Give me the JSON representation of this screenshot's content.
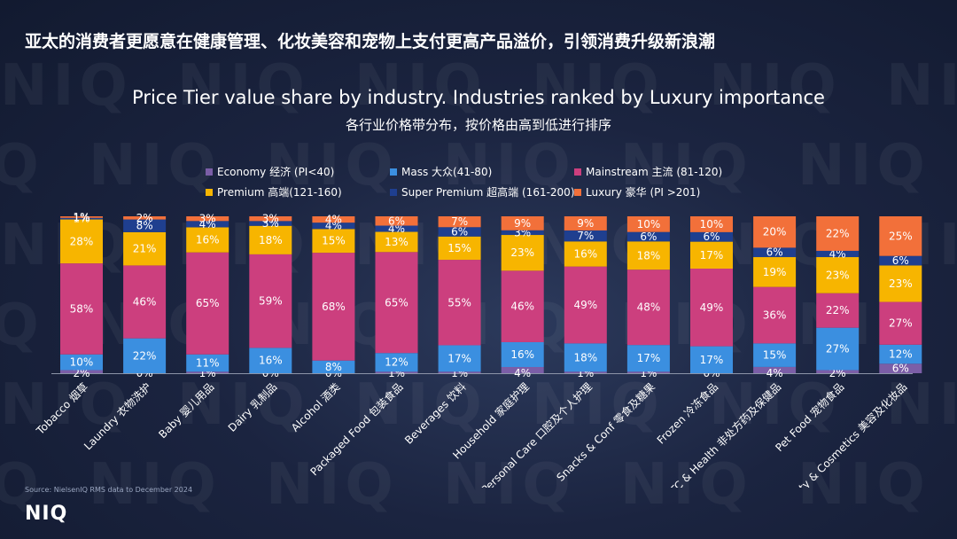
{
  "headline": "亚太的消费者更愿意在健康管理、化妆美容和宠物上支付更高产品溢价，引领消费升级新浪潮",
  "watermark": "NIQ",
  "chart_data": {
    "type": "bar",
    "stacked": true,
    "title": "Price Tier value share by industry. Industries ranked by Luxury importance",
    "subtitle": "各行业价格带分布，按价格由高到低进行排序",
    "legend_position": "top",
    "categories": [
      "Tobacco 烟草",
      "Laundry 衣物洗护",
      "Baby 婴儿用品",
      "Dairy 乳制品",
      "Alcohol 酒类",
      "Packaged Food 包装食品",
      "Beverages 饮料",
      "Household 家庭护理",
      "Oral & Personal Care 口腔及个人护理",
      "Snacks & Conf 零食及糖果",
      "Frozen 冷冻食品",
      "OTC & Health 非处方药及保健品",
      "Pet Food 宠物食品",
      "Beauty & Cosmetics 美容及化妆品"
    ],
    "series": [
      {
        "name": "Economy 经济 (PI<40)",
        "color": "#7b5ea7",
        "values": [
          2,
          0,
          1,
          0,
          0,
          1,
          1,
          4,
          1,
          1,
          0,
          4,
          2,
          6
        ]
      },
      {
        "name": "Mass 大众(41-80)",
        "color": "#3b8fe0",
        "values": [
          10,
          22,
          11,
          16,
          8,
          12,
          17,
          16,
          18,
          17,
          17,
          15,
          27,
          12
        ]
      },
      {
        "name": "Mainstream 主流 (81-120)",
        "color": "#cc3f7e",
        "values": [
          58,
          46,
          65,
          59,
          68,
          65,
          55,
          46,
          49,
          48,
          49,
          36,
          22,
          27
        ]
      },
      {
        "name": "Premium 高端(121-160)",
        "color": "#f7b500",
        "values": [
          28,
          21,
          16,
          18,
          15,
          13,
          15,
          23,
          16,
          18,
          17,
          19,
          23,
          23
        ]
      },
      {
        "name": "Super Premium 超高端 (161-200)",
        "color": "#1f3f8f",
        "values": [
          1,
          8,
          4,
          3,
          4,
          4,
          6,
          3,
          7,
          6,
          6,
          6,
          4,
          6
        ]
      },
      {
        "name": "Luxury 豪华 (PI >201)",
        "color": "#f2703a",
        "values": [
          1,
          2,
          3,
          3,
          4,
          6,
          7,
          9,
          9,
          10,
          10,
          20,
          22,
          25
        ]
      }
    ],
    "ylim": [
      0,
      100
    ],
    "unit": "%"
  },
  "source": "Source: NielsenIQ RMS data to December 2024",
  "logo": "NIQ"
}
